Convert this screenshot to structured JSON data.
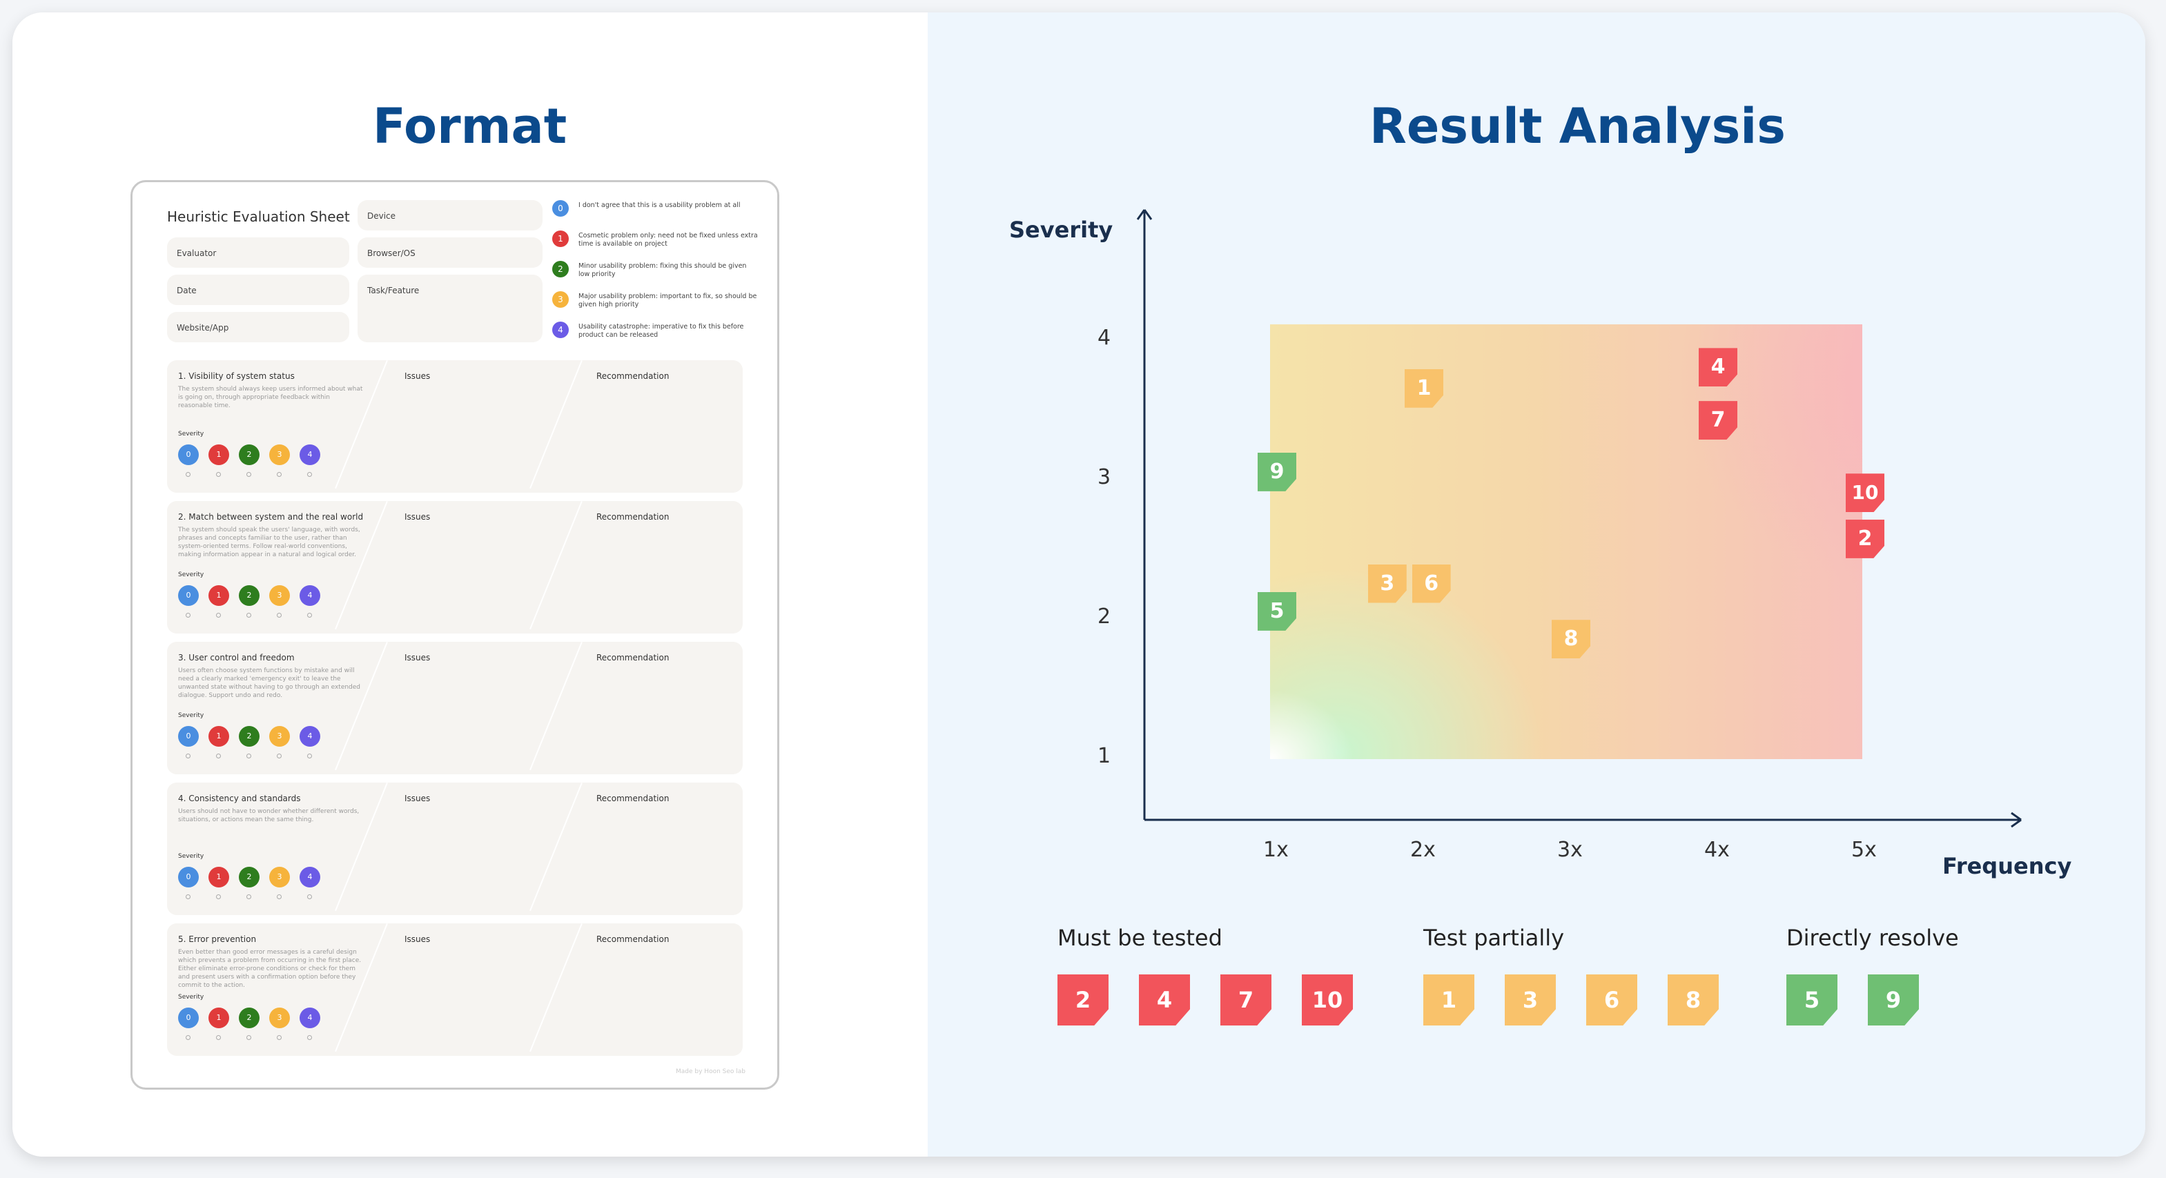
{
  "left_panel": {
    "title": "Format"
  },
  "right_panel": {
    "title": "Result Analysis"
  },
  "sheet": {
    "title": "Heuristic Evaluation Sheet",
    "fields": {
      "evaluator": "Evaluator",
      "date": "Date",
      "website": "Website/App",
      "device": "Device",
      "browser": "Browser/OS",
      "task": "Task/Feature"
    },
    "legend": [
      {
        "num": "0",
        "text": "I don't agree that this is a usability problem at all",
        "color": "#4a8ee0"
      },
      {
        "num": "1",
        "text": "Cosmetic problem only: need not be fixed unless extra time is available on project",
        "color": "#e03b3b"
      },
      {
        "num": "2",
        "text": "Minor usability problem: fixing this should be given low priority",
        "color": "#2e7d1e"
      },
      {
        "num": "3",
        "text": "Major usability problem: important to fix, so should be given high priority",
        "color": "#f6b33c"
      },
      {
        "num": "4",
        "text": "Usability catastrophe: imperative to fix this before product can be released",
        "color": "#6b5be6"
      }
    ],
    "issues_label": "Issues",
    "recommendation_label": "Recommendation",
    "severity_label": "Severity",
    "severity_levels": [
      "0",
      "1",
      "2",
      "3",
      "4"
    ],
    "sections": [
      {
        "title": "1. Visibility of system status",
        "desc": "The system should always keep users informed about what is going on, through appropriate feedback within reasonable time."
      },
      {
        "title": "2. Match between system and the real world",
        "desc": "The system should speak the users' language, with words, phrases and concepts familiar to the user, rather than system-oriented terms. Follow real-world conventions, making information appear in a natural and logical order."
      },
      {
        "title": "3. User control and freedom",
        "desc": "Users often choose system functions by mistake and will need a clearly marked 'emergency exit' to leave the unwanted state without having to go through an extended dialogue. Support undo and redo."
      },
      {
        "title": "4. Consistency and standards",
        "desc": "Users should not have to wonder whether different words, situations, or actions mean the same thing."
      },
      {
        "title": "5. Error prevention",
        "desc": "Even better than good error messages is a careful design which prevents a problem from occurring in the first place. Either eliminate error-prone conditions or check for them and present users with a confirmation option before they commit to the action."
      }
    ],
    "credit": "Made by Hoon Seo lab"
  },
  "chart_data": {
    "type": "scatter",
    "xlabel": "Frequency",
    "ylabel": "Severity",
    "x_ticks": [
      "1x",
      "2x",
      "3x",
      "4x",
      "5x"
    ],
    "y_ticks": [
      "1",
      "2",
      "3",
      "4"
    ],
    "points": [
      {
        "label": "1",
        "x": 2.0,
        "y": 3.65,
        "group": "Test partially"
      },
      {
        "label": "4",
        "x": 4.0,
        "y": 3.8,
        "group": "Must be tested"
      },
      {
        "label": "7",
        "x": 4.0,
        "y": 3.42,
        "group": "Must be tested"
      },
      {
        "label": "9",
        "x": 1.0,
        "y": 3.05,
        "group": "Directly resolve"
      },
      {
        "label": "10",
        "x": 5.0,
        "y": 2.9,
        "group": "Must be tested"
      },
      {
        "label": "2",
        "x": 5.0,
        "y": 2.57,
        "group": "Must be tested"
      },
      {
        "label": "3",
        "x": 1.75,
        "y": 2.25,
        "group": "Test partially"
      },
      {
        "label": "6",
        "x": 2.05,
        "y": 2.25,
        "group": "Test partially"
      },
      {
        "label": "5",
        "x": 1.0,
        "y": 2.05,
        "group": "Directly resolve"
      },
      {
        "label": "8",
        "x": 3.0,
        "y": 1.85,
        "group": "Test partially"
      }
    ],
    "groups": [
      {
        "name": "Must be tested",
        "color": "#f2545b",
        "items": [
          "2",
          "4",
          "7",
          "10"
        ]
      },
      {
        "name": "Test partially",
        "color": "#f9c26b",
        "items": [
          "1",
          "3",
          "6",
          "8"
        ]
      },
      {
        "name": "Directly resolve",
        "color": "#6fbf73",
        "items": [
          "5",
          "9"
        ]
      }
    ]
  }
}
